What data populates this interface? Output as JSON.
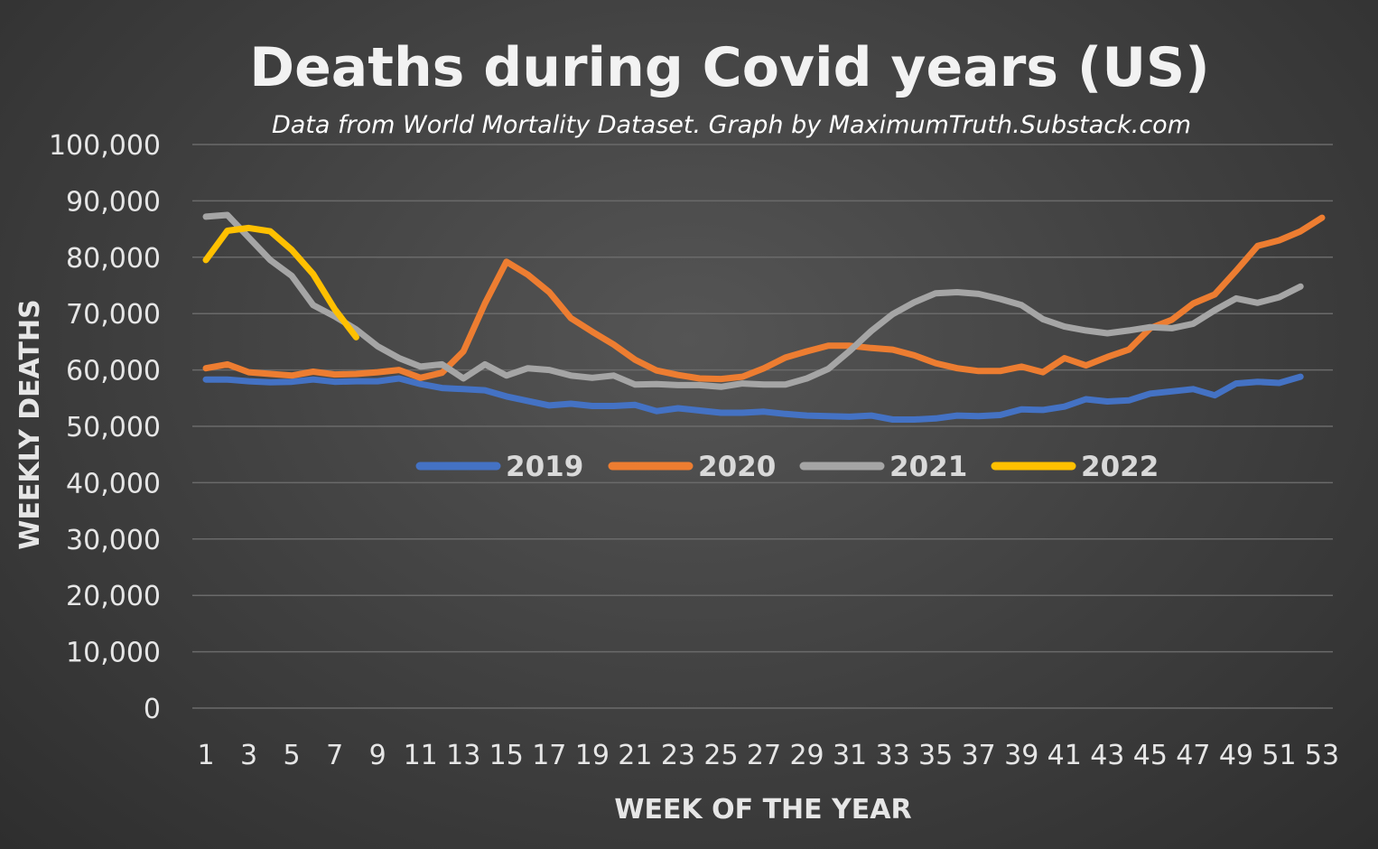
{
  "chart_data": {
    "type": "line",
    "title": "Deaths during Covid years (US)",
    "subtitle": "Data from World Mortality Dataset. Graph by MaximumTruth.Substack.com",
    "xlabel": "WEEK OF THE YEAR",
    "ylabel": "WEEKLY DEATHS",
    "xlim": [
      1,
      53
    ],
    "ylim": [
      0,
      100000
    ],
    "x_ticks": [
      "1",
      "3",
      "5",
      "7",
      "9",
      "11",
      "13",
      "15",
      "17",
      "19",
      "21",
      "23",
      "25",
      "27",
      "29",
      "31",
      "33",
      "35",
      "37",
      "39",
      "41",
      "43",
      "45",
      "47",
      "49",
      "51",
      "53"
    ],
    "y_ticks": [
      "0",
      "10,000",
      "20,000",
      "30,000",
      "40,000",
      "50,000",
      "60,000",
      "70,000",
      "80,000",
      "90,000",
      "100,000"
    ],
    "grid": true,
    "legend_position": "center",
    "series": [
      {
        "name": "2019",
        "color": "#4472C4",
        "x_start": 1,
        "values": [
          58300,
          58300,
          58000,
          57800,
          57900,
          58300,
          57900,
          58000,
          58000,
          58500,
          57500,
          56800,
          56600,
          56400,
          55300,
          54500,
          53700,
          54000,
          53600,
          53600,
          53800,
          52700,
          53200,
          52800,
          52400,
          52400,
          52600,
          52200,
          51900,
          51800,
          51700,
          51900,
          51200,
          51200,
          51400,
          51900,
          51800,
          52000,
          53000,
          52900,
          53500,
          54800,
          54400,
          54600,
          55800,
          56200,
          56600,
          55500,
          57600,
          57900,
          57700,
          58800
        ]
      },
      {
        "name": "2020",
        "color": "#ED7D31",
        "x_start": 1,
        "values": [
          60300,
          61000,
          59600,
          59300,
          59000,
          59700,
          59200,
          59300,
          59600,
          60000,
          58600,
          59500,
          63300,
          71800,
          79200,
          76900,
          73800,
          69200,
          66800,
          64500,
          61800,
          59900,
          59100,
          58500,
          58400,
          58800,
          60300,
          62200,
          63300,
          64300,
          64300,
          63900,
          63600,
          62600,
          61200,
          60300,
          59800,
          59800,
          60600,
          59600,
          62100,
          60800,
          62300,
          63600,
          67400,
          68900,
          71800,
          73400,
          77600,
          82000,
          83000,
          84600,
          87000
        ]
      },
      {
        "name": "2021",
        "color": "#A5A5A5",
        "x_start": 1,
        "values": [
          87200,
          87500,
          83500,
          79500,
          76700,
          71500,
          69500,
          67200,
          64200,
          62100,
          60600,
          61000,
          58500,
          61000,
          59000,
          60300,
          60000,
          59000,
          58600,
          59000,
          57400,
          57500,
          57300,
          57300,
          57000,
          57600,
          57400,
          57400,
          58500,
          60200,
          63400,
          66900,
          69900,
          72000,
          73600,
          73800,
          73500,
          72600,
          71500,
          69000,
          67700,
          67000,
          66500,
          67000,
          67600,
          67400,
          68200,
          70600,
          72700,
          71900,
          72900,
          74800
        ]
      },
      {
        "name": "2022",
        "color": "#FFC000",
        "x_start": 1,
        "values": [
          79500,
          84700,
          85200,
          84600,
          81300,
          77000,
          70800,
          65800
        ]
      }
    ]
  }
}
